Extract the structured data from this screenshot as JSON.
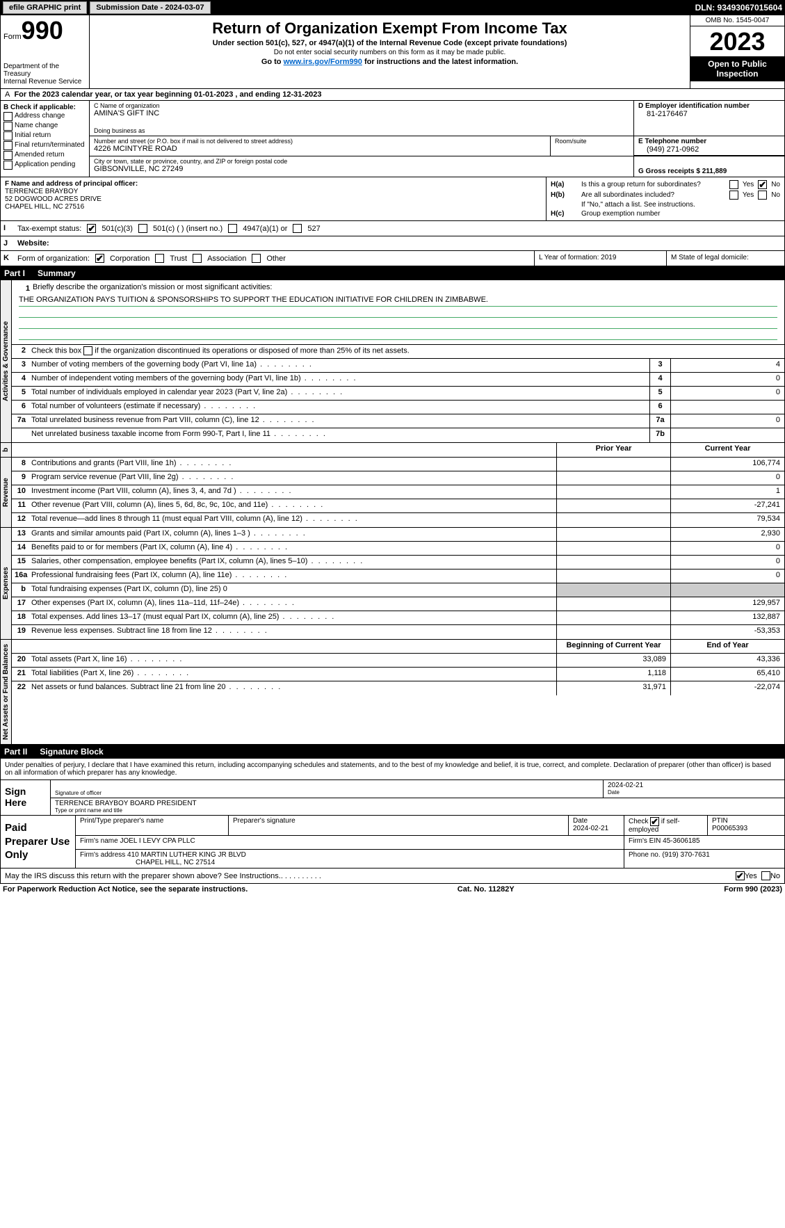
{
  "topbar": {
    "efile_label": "efile GRAPHIC print",
    "submission_label": "Submission Date - 2024-03-07",
    "dln_label": "DLN: 93493067015604"
  },
  "header": {
    "form_word": "Form",
    "form_number": "990",
    "dept": "Department of the Treasury\nInternal Revenue Service",
    "title": "Return of Organization Exempt From Income Tax",
    "subtitle": "Under section 501(c), 527, or 4947(a)(1) of the Internal Revenue Code (except private foundations)",
    "ssn_note": "Do not enter social security numbers on this form as it may be made public.",
    "goto_prefix": "Go to ",
    "goto_link": "www.irs.gov/Form990",
    "goto_suffix": " for instructions and the latest information.",
    "omb": "OMB No. 1545-0047",
    "year": "2023",
    "open_public": "Open to Public Inspection"
  },
  "line_a": "For the 2023 calendar year, or tax year beginning 01-01-2023   , and ending 12-31-2023",
  "box_b": {
    "heading": "B Check if applicable:",
    "items": [
      "Address change",
      "Name change",
      "Initial return",
      "Final return/terminated",
      "Amended return",
      "Application pending"
    ]
  },
  "box_c": {
    "name_label": "C Name of organization",
    "name_value": "AMINA'S GIFT INC",
    "dba_label": "Doing business as",
    "street_label": "Number and street (or P.O. box if mail is not delivered to street address)",
    "street_value": "4226 MCINTYRE ROAD",
    "room_label": "Room/suite",
    "city_label": "City or town, state or province, country, and ZIP or foreign postal code",
    "city_value": "GIBSONVILLE, NC  27249"
  },
  "box_d": {
    "label": "D Employer identification number",
    "value": "81-2176467"
  },
  "box_e": {
    "label": "E Telephone number",
    "value": "(949) 271-0962"
  },
  "box_g": {
    "label": "G Gross receipts $ 211,889"
  },
  "box_f": {
    "label": "F  Name and address of principal officer:",
    "name": "TERRENCE BRAYBOY",
    "street": "52 DOGWOOD ACRES DRIVE",
    "city": "CHAPEL HILL, NC  27516"
  },
  "box_h": {
    "ha_label": "H(a)",
    "ha_text": "Is this a group return for subordinates?",
    "hb_label": "H(b)",
    "hb_text": "Are all subordinates included?",
    "hb_note": "If \"No,\" attach a list. See instructions.",
    "hc_label": "H(c)",
    "hc_text": "Group exemption number ",
    "yes": "Yes",
    "no": "No"
  },
  "line_i": {
    "label": "I",
    "text": "Tax-exempt status:",
    "opts": [
      "501(c)(3)",
      "501(c) (  ) (insert no.)",
      "4947(a)(1) or",
      "527"
    ]
  },
  "line_j": {
    "label": "J",
    "text": "Website: "
  },
  "line_k": {
    "label": "K",
    "text": "Form of organization:",
    "opts": [
      "Corporation",
      "Trust",
      "Association",
      "Other"
    ]
  },
  "line_l": {
    "text": "L Year of formation: 2019"
  },
  "line_m": {
    "text": "M State of legal domicile:"
  },
  "part1": {
    "header_num": "Part I",
    "header_text": "Summary",
    "q1_label": "1",
    "q1_text": "Briefly describe the organization's mission or most significant activities:",
    "q1_mission": "THE ORGANIZATION PAYS TUITION & SPONSORSHIPS TO SUPPORT THE EDUCATION INITIATIVE FOR CHILDREN IN ZIMBABWE.",
    "q2_label": "2",
    "q2_text": "Check this box        if the organization discontinued its operations or disposed of more than 25% of its net assets.",
    "vtab_gov": "Activities & Governance",
    "vtab_rev": "Revenue",
    "vtab_exp": "Expenses",
    "vtab_net": "Net Assets or Fund Balances",
    "col_prior": "Prior Year",
    "col_current": "Current Year",
    "col_beg": "Beginning of Current Year",
    "col_end": "End of Year",
    "rows_gov": [
      {
        "n": "3",
        "t": "Number of voting members of the governing body (Part VI, line 1a)",
        "box": "3",
        "v": "4"
      },
      {
        "n": "4",
        "t": "Number of independent voting members of the governing body (Part VI, line 1b)",
        "box": "4",
        "v": "0"
      },
      {
        "n": "5",
        "t": "Total number of individuals employed in calendar year 2023 (Part V, line 2a)",
        "box": "5",
        "v": "0"
      },
      {
        "n": "6",
        "t": "Total number of volunteers (estimate if necessary)",
        "box": "6",
        "v": ""
      },
      {
        "n": "7a",
        "t": "Total unrelated business revenue from Part VIII, column (C), line 12",
        "box": "7a",
        "v": "0"
      },
      {
        "n": "",
        "t": "Net unrelated business taxable income from Form 990-T, Part I, line 11",
        "box": "7b",
        "v": ""
      }
    ],
    "rows_rev": [
      {
        "n": "8",
        "t": "Contributions and grants (Part VIII, line 1h)",
        "p": "",
        "c": "106,774"
      },
      {
        "n": "9",
        "t": "Program service revenue (Part VIII, line 2g)",
        "p": "",
        "c": "0"
      },
      {
        "n": "10",
        "t": "Investment income (Part VIII, column (A), lines 3, 4, and 7d )",
        "p": "",
        "c": "1"
      },
      {
        "n": "11",
        "t": "Other revenue (Part VIII, column (A), lines 5, 6d, 8c, 9c, 10c, and 11e)",
        "p": "",
        "c": "-27,241"
      },
      {
        "n": "12",
        "t": "Total revenue—add lines 8 through 11 (must equal Part VIII, column (A), line 12)",
        "p": "",
        "c": "79,534"
      }
    ],
    "rows_exp": [
      {
        "n": "13",
        "t": "Grants and similar amounts paid (Part IX, column (A), lines 1–3 )",
        "p": "",
        "c": "2,930"
      },
      {
        "n": "14",
        "t": "Benefits paid to or for members (Part IX, column (A), line 4)",
        "p": "",
        "c": "0"
      },
      {
        "n": "15",
        "t": "Salaries, other compensation, employee benefits (Part IX, column (A), lines 5–10)",
        "p": "",
        "c": "0"
      },
      {
        "n": "16a",
        "t": "Professional fundraising fees (Part IX, column (A), line 11e)",
        "p": "",
        "c": "0"
      },
      {
        "n": "b",
        "t": "Total fundraising expenses (Part IX, column (D), line 25) 0",
        "shade": true
      },
      {
        "n": "17",
        "t": "Other expenses (Part IX, column (A), lines 11a–11d, 11f–24e)",
        "p": "",
        "c": "129,957"
      },
      {
        "n": "18",
        "t": "Total expenses. Add lines 13–17 (must equal Part IX, column (A), line 25)",
        "p": "",
        "c": "132,887"
      },
      {
        "n": "19",
        "t": "Revenue less expenses. Subtract line 18 from line 12",
        "p": "",
        "c": "-53,353"
      }
    ],
    "rows_net": [
      {
        "n": "20",
        "t": "Total assets (Part X, line 16)",
        "p": "33,089",
        "c": "43,336"
      },
      {
        "n": "21",
        "t": "Total liabilities (Part X, line 26)",
        "p": "1,118",
        "c": "65,410"
      },
      {
        "n": "22",
        "t": "Net assets or fund balances. Subtract line 21 from line 20",
        "p": "31,971",
        "c": "-22,074"
      }
    ]
  },
  "part2": {
    "header_num": "Part II",
    "header_text": "Signature Block",
    "declaration": "Under penalties of perjury, I declare that I have examined this return, including accompanying schedules and statements, and to the best of my knowledge and belief, it is true, correct, and complete. Declaration of preparer (other than officer) is based on all information of which preparer has any knowledge."
  },
  "sign_here": {
    "label": "Sign Here",
    "sig_label": "Signature of officer",
    "date_label": "Date",
    "date_value": "2024-02-21",
    "name_value": "TERRENCE BRAYBOY BOARD PRESIDENT",
    "name_label": "Type or print name and title"
  },
  "paid": {
    "label": "Paid Preparer Use Only",
    "col1": "Print/Type preparer's name",
    "col2": "Preparer's signature",
    "col3_label": "Date",
    "col3_value": "2024-02-21",
    "col4_label": "Check         if self-employed",
    "col5_label": "PTIN",
    "col5_value": "P00065393",
    "firm_name_label": "Firm's name      ",
    "firm_name": "JOEL I LEVY CPA PLLC",
    "firm_ein_label": "Firm's EIN  ",
    "firm_ein": "45-3606185",
    "firm_addr_label": "Firm's address ",
    "firm_addr1": "410 MARTIN LUTHER KING JR BLVD",
    "firm_addr2": "CHAPEL HILL, NC  27514",
    "phone_label": "Phone no. ",
    "phone": "(919) 370-7631"
  },
  "discuss": {
    "text": "May the IRS discuss this return with the preparer shown above? See Instructions.",
    "yes": "Yes",
    "no": "No"
  },
  "footer": {
    "left": "For Paperwork Reduction Act Notice, see the separate instructions.",
    "mid": "Cat. No. 11282Y",
    "right_prefix": "Form ",
    "right_form": "990",
    "right_suffix": " (2023)"
  }
}
